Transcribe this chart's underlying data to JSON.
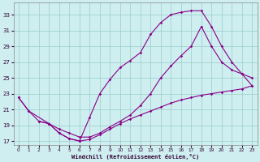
{
  "xlabel": "Windchill (Refroidissement éolien,°C)",
  "xlim": [
    -0.5,
    23.5
  ],
  "ylim": [
    16.5,
    34.5
  ],
  "yticks": [
    17,
    19,
    21,
    23,
    25,
    27,
    29,
    31,
    33
  ],
  "xticks": [
    0,
    1,
    2,
    3,
    4,
    5,
    6,
    7,
    8,
    9,
    10,
    11,
    12,
    13,
    14,
    15,
    16,
    17,
    18,
    19,
    20,
    21,
    22,
    23
  ],
  "bg_color": "#ceeef0",
  "line_color": "#880088",
  "grid_color": "#99cccc",
  "curve1_x": [
    0,
    1,
    2,
    3,
    4,
    5,
    6,
    7,
    8,
    9,
    10,
    11,
    12,
    13,
    14,
    15,
    16,
    17,
    18,
    19,
    20,
    21,
    22,
    23
  ],
  "curve1_y": [
    22.5,
    20.8,
    19.5,
    19.2,
    18.0,
    17.3,
    17.0,
    17.2,
    17.8,
    18.5,
    19.2,
    19.8,
    20.3,
    20.8,
    21.3,
    21.8,
    22.2,
    22.5,
    22.8,
    23.0,
    23.2,
    23.4,
    23.6,
    24.0
  ],
  "curve2_x": [
    0,
    1,
    3,
    4,
    5,
    6,
    7,
    8,
    9,
    10,
    11,
    12,
    13,
    14,
    15,
    16,
    17,
    18,
    19,
    20,
    21,
    22,
    23
  ],
  "curve2_y": [
    22.5,
    20.8,
    19.2,
    18.0,
    17.3,
    17.0,
    20.0,
    23.0,
    24.8,
    26.3,
    27.2,
    28.2,
    30.5,
    32.0,
    33.0,
    33.3,
    33.5,
    33.5,
    31.5,
    29.0,
    27.0,
    25.5,
    24.0
  ],
  "curve3_x": [
    2,
    3,
    4,
    5,
    6,
    7,
    8,
    9,
    10,
    11,
    12,
    13,
    14,
    15,
    16,
    17,
    18,
    19,
    20,
    21,
    22,
    23
  ],
  "curve3_y": [
    19.5,
    19.2,
    18.5,
    18.0,
    17.5,
    17.5,
    18.0,
    18.8,
    19.5,
    20.3,
    21.5,
    23.0,
    25.0,
    26.5,
    27.8,
    29.0,
    31.5,
    29.0,
    27.0,
    26.0,
    25.5,
    25.0
  ]
}
